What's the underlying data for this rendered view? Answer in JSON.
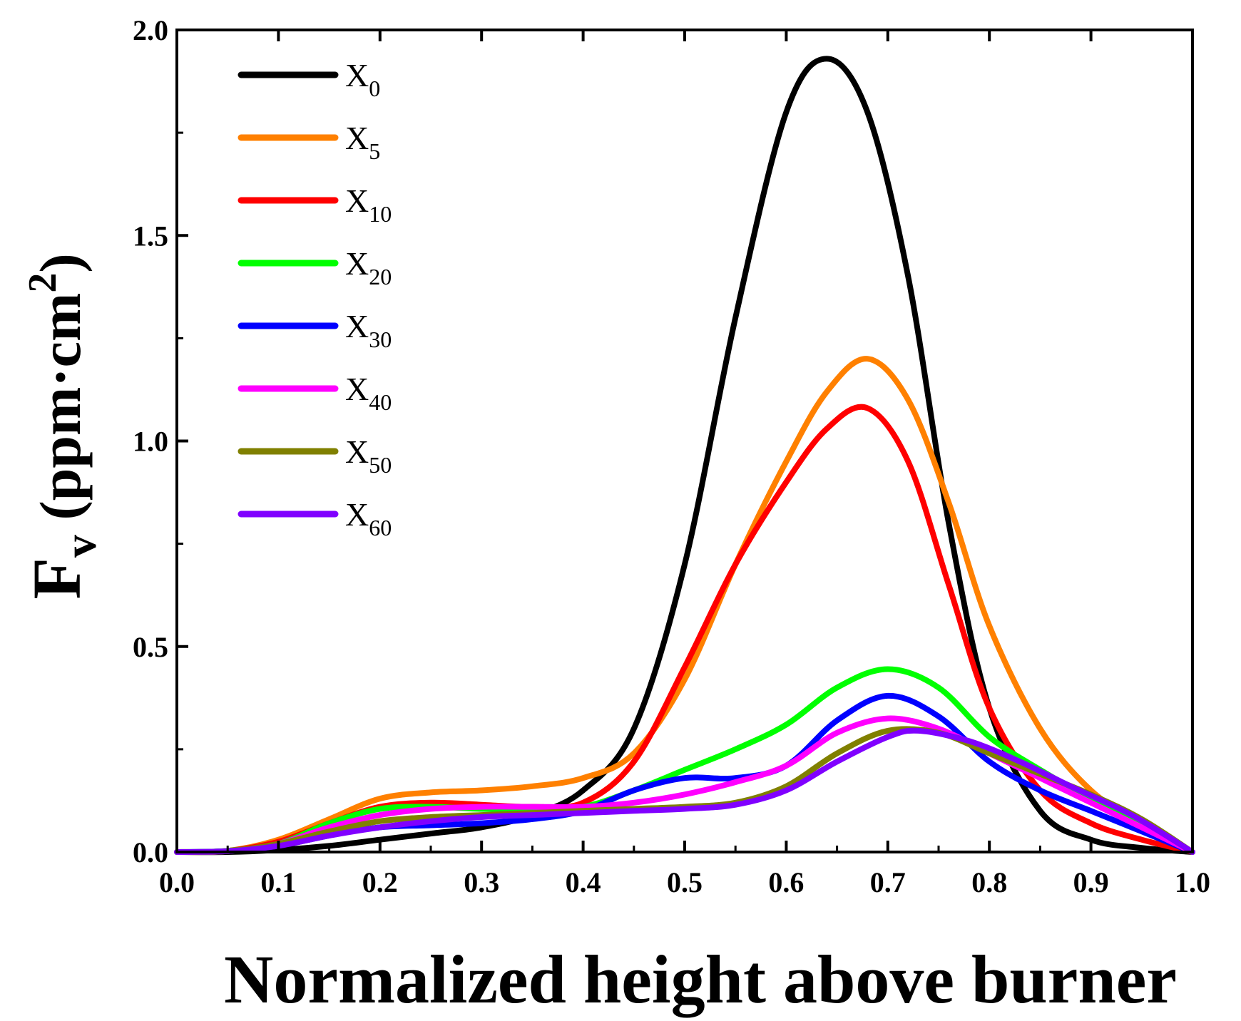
{
  "chart_data": {
    "type": "line",
    "title": "",
    "xlabel": "Normalized height above burner",
    "ylabel": {
      "main": "F",
      "sub": "v",
      "units_prefix": " (ppm·cm",
      "units_sup": "2",
      "units_suffix": ")"
    },
    "xlim": [
      0.0,
      1.0
    ],
    "ylim": [
      0.0,
      2.0
    ],
    "xticks": [
      "0.0",
      "0.1",
      "0.2",
      "0.3",
      "0.4",
      "0.5",
      "0.6",
      "0.7",
      "0.8",
      "0.9",
      "1.0"
    ],
    "yticks": [
      "0.0",
      "0.5",
      "1.0",
      "1.5",
      "2.0"
    ],
    "legend_position": "top-left",
    "series": [
      {
        "name": "X",
        "sub": "0",
        "color": "#000000",
        "x": [
          0,
          0.05,
          0.1,
          0.15,
          0.2,
          0.25,
          0.3,
          0.35,
          0.4,
          0.45,
          0.5,
          0.55,
          0.6,
          0.64,
          0.68,
          0.72,
          0.76,
          0.8,
          0.85,
          0.9,
          0.95,
          1.0
        ],
        "y": [
          0,
          0,
          0.005,
          0.015,
          0.03,
          0.045,
          0.06,
          0.09,
          0.15,
          0.3,
          0.7,
          1.3,
          1.8,
          1.93,
          1.8,
          1.4,
          0.8,
          0.35,
          0.1,
          0.03,
          0.01,
          0
        ]
      },
      {
        "name": "X",
        "sub": "5",
        "color": "#ff8000",
        "x": [
          0,
          0.05,
          0.1,
          0.15,
          0.2,
          0.25,
          0.3,
          0.35,
          0.4,
          0.45,
          0.5,
          0.55,
          0.6,
          0.64,
          0.68,
          0.72,
          0.76,
          0.8,
          0.85,
          0.9,
          0.95,
          1.0
        ],
        "y": [
          0,
          0.003,
          0.03,
          0.08,
          0.13,
          0.145,
          0.15,
          0.16,
          0.18,
          0.24,
          0.42,
          0.7,
          0.95,
          1.12,
          1.2,
          1.1,
          0.85,
          0.55,
          0.3,
          0.15,
          0.07,
          0
        ]
      },
      {
        "name": "X",
        "sub": "10",
        "color": "#ff0000",
        "x": [
          0,
          0.05,
          0.1,
          0.15,
          0.2,
          0.25,
          0.3,
          0.35,
          0.4,
          0.45,
          0.5,
          0.55,
          0.6,
          0.64,
          0.68,
          0.72,
          0.76,
          0.8,
          0.85,
          0.9,
          0.95,
          1.0
        ],
        "y": [
          0,
          0.003,
          0.025,
          0.07,
          0.11,
          0.12,
          0.115,
          0.11,
          0.12,
          0.22,
          0.45,
          0.7,
          0.9,
          1.03,
          1.08,
          0.95,
          0.65,
          0.35,
          0.15,
          0.07,
          0.03,
          0
        ]
      },
      {
        "name": "X",
        "sub": "20",
        "color": "#00ff00",
        "x": [
          0,
          0.05,
          0.1,
          0.15,
          0.2,
          0.25,
          0.3,
          0.35,
          0.4,
          0.45,
          0.5,
          0.55,
          0.6,
          0.65,
          0.7,
          0.75,
          0.8,
          0.85,
          0.9,
          0.95,
          1.0
        ],
        "y": [
          0,
          0.003,
          0.02,
          0.07,
          0.105,
          0.11,
          0.105,
          0.105,
          0.11,
          0.15,
          0.2,
          0.25,
          0.31,
          0.4,
          0.445,
          0.4,
          0.28,
          0.2,
          0.13,
          0.07,
          0
        ]
      },
      {
        "name": "X",
        "sub": "30",
        "color": "#0000ff",
        "x": [
          0,
          0.05,
          0.1,
          0.15,
          0.2,
          0.25,
          0.3,
          0.35,
          0.4,
          0.45,
          0.5,
          0.55,
          0.6,
          0.65,
          0.7,
          0.75,
          0.8,
          0.85,
          0.9,
          0.95,
          1.0
        ],
        "y": [
          0,
          0.002,
          0.015,
          0.04,
          0.06,
          0.065,
          0.07,
          0.08,
          0.1,
          0.15,
          0.18,
          0.18,
          0.21,
          0.32,
          0.38,
          0.33,
          0.22,
          0.15,
          0.1,
          0.05,
          0
        ]
      },
      {
        "name": "X",
        "sub": "40",
        "color": "#ff00ff",
        "x": [
          0,
          0.05,
          0.1,
          0.15,
          0.2,
          0.25,
          0.3,
          0.35,
          0.4,
          0.45,
          0.5,
          0.55,
          0.6,
          0.65,
          0.7,
          0.75,
          0.8,
          0.85,
          0.9,
          0.95,
          1.0
        ],
        "y": [
          0,
          0.002,
          0.02,
          0.06,
          0.09,
          0.105,
          0.11,
          0.11,
          0.11,
          0.12,
          0.14,
          0.17,
          0.21,
          0.29,
          0.325,
          0.3,
          0.24,
          0.18,
          0.12,
          0.06,
          0
        ]
      },
      {
        "name": "X",
        "sub": "50",
        "color": "#808000",
        "x": [
          0,
          0.05,
          0.1,
          0.15,
          0.2,
          0.25,
          0.3,
          0.35,
          0.4,
          0.45,
          0.5,
          0.55,
          0.6,
          0.65,
          0.7,
          0.75,
          0.8,
          0.85,
          0.9,
          0.95,
          1.0
        ],
        "y": [
          0,
          0.002,
          0.02,
          0.05,
          0.075,
          0.085,
          0.09,
          0.095,
          0.1,
          0.105,
          0.11,
          0.12,
          0.16,
          0.24,
          0.295,
          0.29,
          0.24,
          0.19,
          0.14,
          0.08,
          0
        ]
      },
      {
        "name": "X",
        "sub": "60",
        "color": "#8000ff",
        "x": [
          0,
          0.05,
          0.1,
          0.15,
          0.2,
          0.25,
          0.3,
          0.35,
          0.4,
          0.45,
          0.5,
          0.55,
          0.6,
          0.65,
          0.7,
          0.73,
          0.78,
          0.83,
          0.88,
          0.94,
          1.0
        ],
        "y": [
          0,
          0.002,
          0.015,
          0.04,
          0.06,
          0.075,
          0.085,
          0.09,
          0.095,
          0.1,
          0.105,
          0.115,
          0.15,
          0.22,
          0.28,
          0.295,
          0.27,
          0.22,
          0.16,
          0.09,
          0
        ]
      }
    ]
  }
}
